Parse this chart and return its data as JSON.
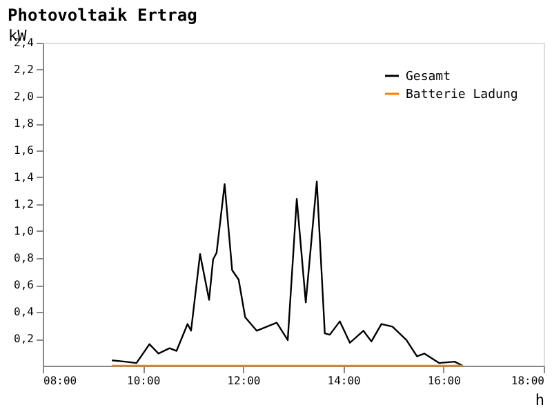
{
  "chart_data": {
    "type": "line",
    "title": "Photovoltaik Ertrag",
    "xlabel": "h",
    "ylabel": "kW",
    "xlim": [
      8,
      18
    ],
    "xticks": [
      {
        "value": 8,
        "label": "08:00"
      },
      {
        "value": 10,
        "label": "10:00"
      },
      {
        "value": 12,
        "label": "12:00"
      },
      {
        "value": 14,
        "label": "14:00"
      },
      {
        "value": 16,
        "label": "16:00"
      },
      {
        "value": 18,
        "label": "18:00"
      }
    ],
    "ylim": [
      0,
      2.4
    ],
    "yticks": [
      {
        "value": 0.2,
        "label": "0,2"
      },
      {
        "value": 0.4,
        "label": "0,4"
      },
      {
        "value": 0.6,
        "label": "0,6"
      },
      {
        "value": 0.8,
        "label": "0,8"
      },
      {
        "value": 1.0,
        "label": "1,0"
      },
      {
        "value": 1.2,
        "label": "1,2"
      },
      {
        "value": 1.4,
        "label": "1,4"
      },
      {
        "value": 1.6,
        "label": "1,6"
      },
      {
        "value": 1.8,
        "label": "1,8"
      },
      {
        "value": 2.0,
        "label": "2,0"
      },
      {
        "value": 2.2,
        "label": "2,2"
      },
      {
        "value": 2.4,
        "label": "2,4"
      }
    ],
    "grid": false,
    "legend": "top right",
    "marker": "none",
    "line_style": "solid",
    "series": [
      {
        "name": "Gesamt",
        "color": "#000000",
        "x": [
          9.38,
          9.64,
          9.87,
          10.13,
          10.31,
          10.53,
          10.67,
          10.89,
          10.96,
          11.14,
          11.32,
          11.4,
          11.47,
          11.63,
          11.78,
          11.91,
          12.04,
          12.27,
          12.67,
          12.89,
          13.07,
          13.25,
          13.47,
          13.63,
          13.73,
          13.93,
          14.13,
          14.4,
          14.56,
          14.76,
          14.98,
          15.26,
          15.47,
          15.62,
          15.91,
          16.22,
          16.38
        ],
        "values": [
          0.04,
          0.03,
          0.02,
          0.16,
          0.09,
          0.13,
          0.11,
          0.31,
          0.26,
          0.83,
          0.49,
          0.79,
          0.84,
          1.35,
          0.71,
          0.64,
          0.36,
          0.26,
          0.32,
          0.19,
          1.24,
          0.47,
          1.37,
          0.24,
          0.23,
          0.33,
          0.17,
          0.26,
          0.18,
          0.31,
          0.29,
          0.19,
          0.07,
          0.09,
          0.02,
          0.03,
          0
        ]
      },
      {
        "name": "Batterie Ladung",
        "color": "#ff8000",
        "x": [
          9.38,
          16.38
        ],
        "values": [
          0,
          0
        ]
      }
    ]
  }
}
